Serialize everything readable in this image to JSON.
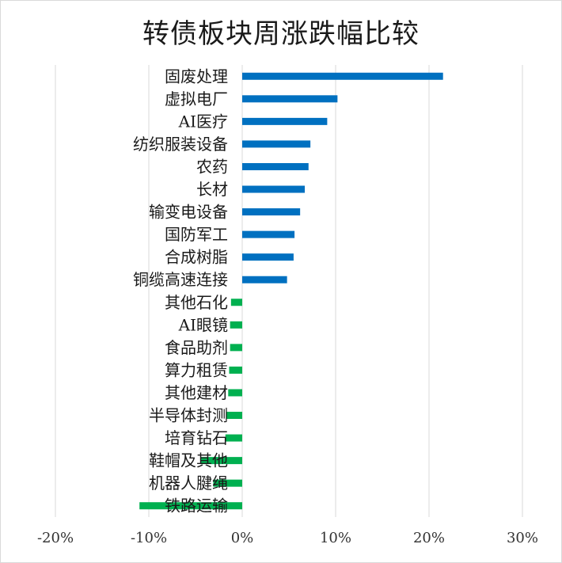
{
  "chart_data": {
    "type": "bar",
    "orientation": "horizontal",
    "title": "转债板块周涨跌幅比较",
    "categories": [
      "固废处理",
      "虚拟电厂",
      "AI医疗",
      "纺织服装设备",
      "农药",
      "长材",
      "输变电设备",
      "国防军工",
      "合成树脂",
      "铜缆高速连接",
      "其他石化",
      "AI眼镜",
      "食品助剂",
      "算力租赁",
      "其他建材",
      "半导体封测",
      "培育钻石",
      "鞋帽及其他",
      "机器人腱绳",
      "铁路运输"
    ],
    "values": [
      21.5,
      10.2,
      9.1,
      7.3,
      7.1,
      6.7,
      6.2,
      5.6,
      5.5,
      4.8,
      -1.2,
      -1.3,
      -1.3,
      -1.4,
      -1.5,
      -1.7,
      -1.8,
      -4.4,
      -3.1,
      -11.0
    ],
    "xlim": [
      -20,
      30
    ],
    "xticks": [
      -20,
      -10,
      0,
      10,
      20,
      30
    ],
    "xtick_labels": [
      "-20%",
      "-10%",
      "0%",
      "10%",
      "20%",
      "30%"
    ],
    "grid": "vertical",
    "colors": {
      "positive": "#0070c0",
      "negative": "#00b050",
      "grid": "#d9d9d9"
    }
  }
}
